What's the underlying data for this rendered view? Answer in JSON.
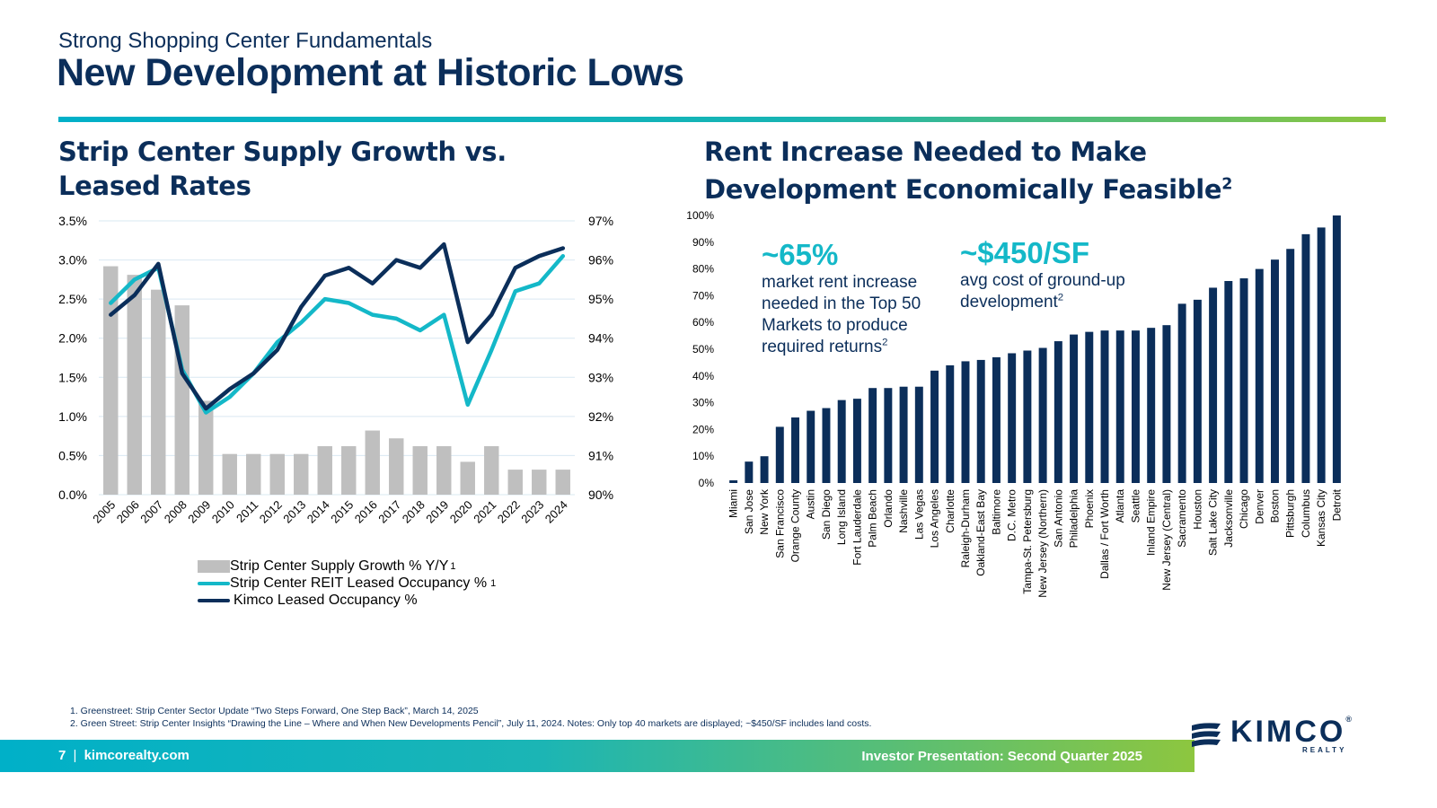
{
  "header": {
    "subtitle": "Strong Shopping Center Fundamentals",
    "title": "New Development at Historic Lows"
  },
  "left_section": {
    "title": "Strip Center Supply Growth vs. Leased Rates"
  },
  "right_section": {
    "title_line1": "Rent Increase Needed to Make",
    "title_line2": "Development Economically Feasible",
    "title_sup": "2",
    "callout1_value": "~65%",
    "callout1_text": "market rent increase needed in the Top 50 Markets to produce required returns",
    "callout1_sup": "2",
    "callout2_value": "~$450/SF",
    "callout2_text": "avg cost of ground-up development",
    "callout2_sup": "2"
  },
  "footnotes": [
    "1. Greenstreet: Strip Center Sector Update “Two Steps Forward, One Step Back”, March 14, 2025",
    "2. Green Street: Strip Center Insights “Drawing the Line – Where and When New Developments Pencil”, July 11, 2024. Notes: Only top 40 markets are displayed; ~$450/SF includes land costs."
  ],
  "footer": {
    "page_number": "7",
    "separator": "|",
    "site": "kimcorealty.com",
    "presentation": "Investor Presentation: Second Quarter 2025",
    "logo_text": "KIMCO",
    "logo_sub": "REALTY",
    "logo_symbol": "®"
  },
  "colors": {
    "navy": "#0b2e5a",
    "teal": "#14b8c8",
    "gray_bar": "#bfbfbf",
    "grid": "#d9e8f2"
  },
  "chart_data": [
    {
      "type": "bar",
      "title": "Strip Center Supply Growth vs. Leased Rates",
      "categories": [
        "2005",
        "2006",
        "2007",
        "2008",
        "2009",
        "2010",
        "2011",
        "2012",
        "2013",
        "2014",
        "2015",
        "2016",
        "2017",
        "2018",
        "2019",
        "2020",
        "2021",
        "2022",
        "2023",
        "2024"
      ],
      "y_left": {
        "ticks": [
          "0.0%",
          "0.5%",
          "1.0%",
          "1.5%",
          "2.0%",
          "2.5%",
          "3.0%",
          "3.5%"
        ],
        "ylim": [
          0,
          3.5
        ]
      },
      "y_right": {
        "ticks": [
          "90%",
          "91%",
          "92%",
          "93%",
          "94%",
          "95%",
          "96%",
          "97%"
        ],
        "ylim": [
          90,
          97
        ]
      },
      "series": [
        {
          "name": "Strip Center Supply Growth % Y/Y",
          "sup": "1",
          "kind": "bar",
          "axis": "left",
          "values": [
            2.92,
            2.81,
            2.62,
            2.42,
            1.2,
            0.52,
            0.52,
            0.52,
            0.52,
            0.62,
            0.62,
            0.82,
            0.72,
            0.62,
            0.62,
            0.42,
            0.62,
            0.32,
            0.32,
            0.32
          ]
        },
        {
          "name": "Strip Center REIT Leased Occupancy %",
          "sup": "1",
          "kind": "line",
          "axis": "right",
          "values": [
            94.9,
            95.5,
            95.8,
            93.2,
            92.1,
            92.5,
            93.1,
            93.9,
            94.4,
            95.0,
            94.9,
            94.6,
            94.5,
            94.2,
            94.6,
            92.3,
            93.7,
            95.2,
            95.4,
            96.1
          ]
        },
        {
          "name": "Kimco Leased Occupancy %",
          "sup": "",
          "kind": "line",
          "axis": "right",
          "values": [
            94.6,
            95.1,
            95.9,
            93.1,
            92.2,
            92.7,
            93.1,
            93.7,
            94.8,
            95.6,
            95.8,
            95.4,
            96.0,
            95.8,
            96.4,
            93.9,
            94.6,
            95.8,
            96.1,
            96.3
          ]
        }
      ]
    },
    {
      "type": "bar",
      "title": "Rent Increase Needed to Make Development Economically Feasible",
      "categories": [
        "Miami",
        "San Jose",
        "New York",
        "San Francisco",
        "Orange County",
        "Austin",
        "San Diego",
        "Long Island",
        "Fort Lauderdale",
        "Palm Beach",
        "Orlando",
        "Nashville",
        "Las Vegas",
        "Los Angeles",
        "Charlotte",
        "Raleigh-Durham",
        "Oakland-East Bay",
        "Baltimore",
        "D.C. Metro",
        "Tampa-St. Petersburg",
        "New Jersey (Northern)",
        "San Antonio",
        "Philadelphia",
        "Phoenix",
        "Dallas / Fort Worth",
        "Atlanta",
        "Seattle",
        "Inland Empire",
        "New Jersey (Central)",
        "Sacramento",
        "Houston",
        "Salt Lake City",
        "Jacksonville",
        "Chicago",
        "Denver",
        "Boston",
        "Pittsburgh",
        "Columbus",
        "Kansas City",
        "Detroit"
      ],
      "values": [
        1,
        8,
        10,
        21,
        24.5,
        27,
        28,
        31,
        31.5,
        35.5,
        35.5,
        36,
        36,
        42,
        44,
        45.5,
        46,
        47,
        48.5,
        49.5,
        50.5,
        53,
        55.5,
        56.5,
        57,
        57,
        57,
        58,
        59,
        67,
        68.5,
        73,
        75.5,
        76.5,
        80,
        83.5,
        87.5,
        93,
        95.5,
        100
      ],
      "y_ticks": [
        "0%",
        "10%",
        "20%",
        "30%",
        "40%",
        "50%",
        "60%",
        "70%",
        "80%",
        "90%",
        "100%"
      ],
      "ylim": [
        0,
        100
      ]
    }
  ]
}
